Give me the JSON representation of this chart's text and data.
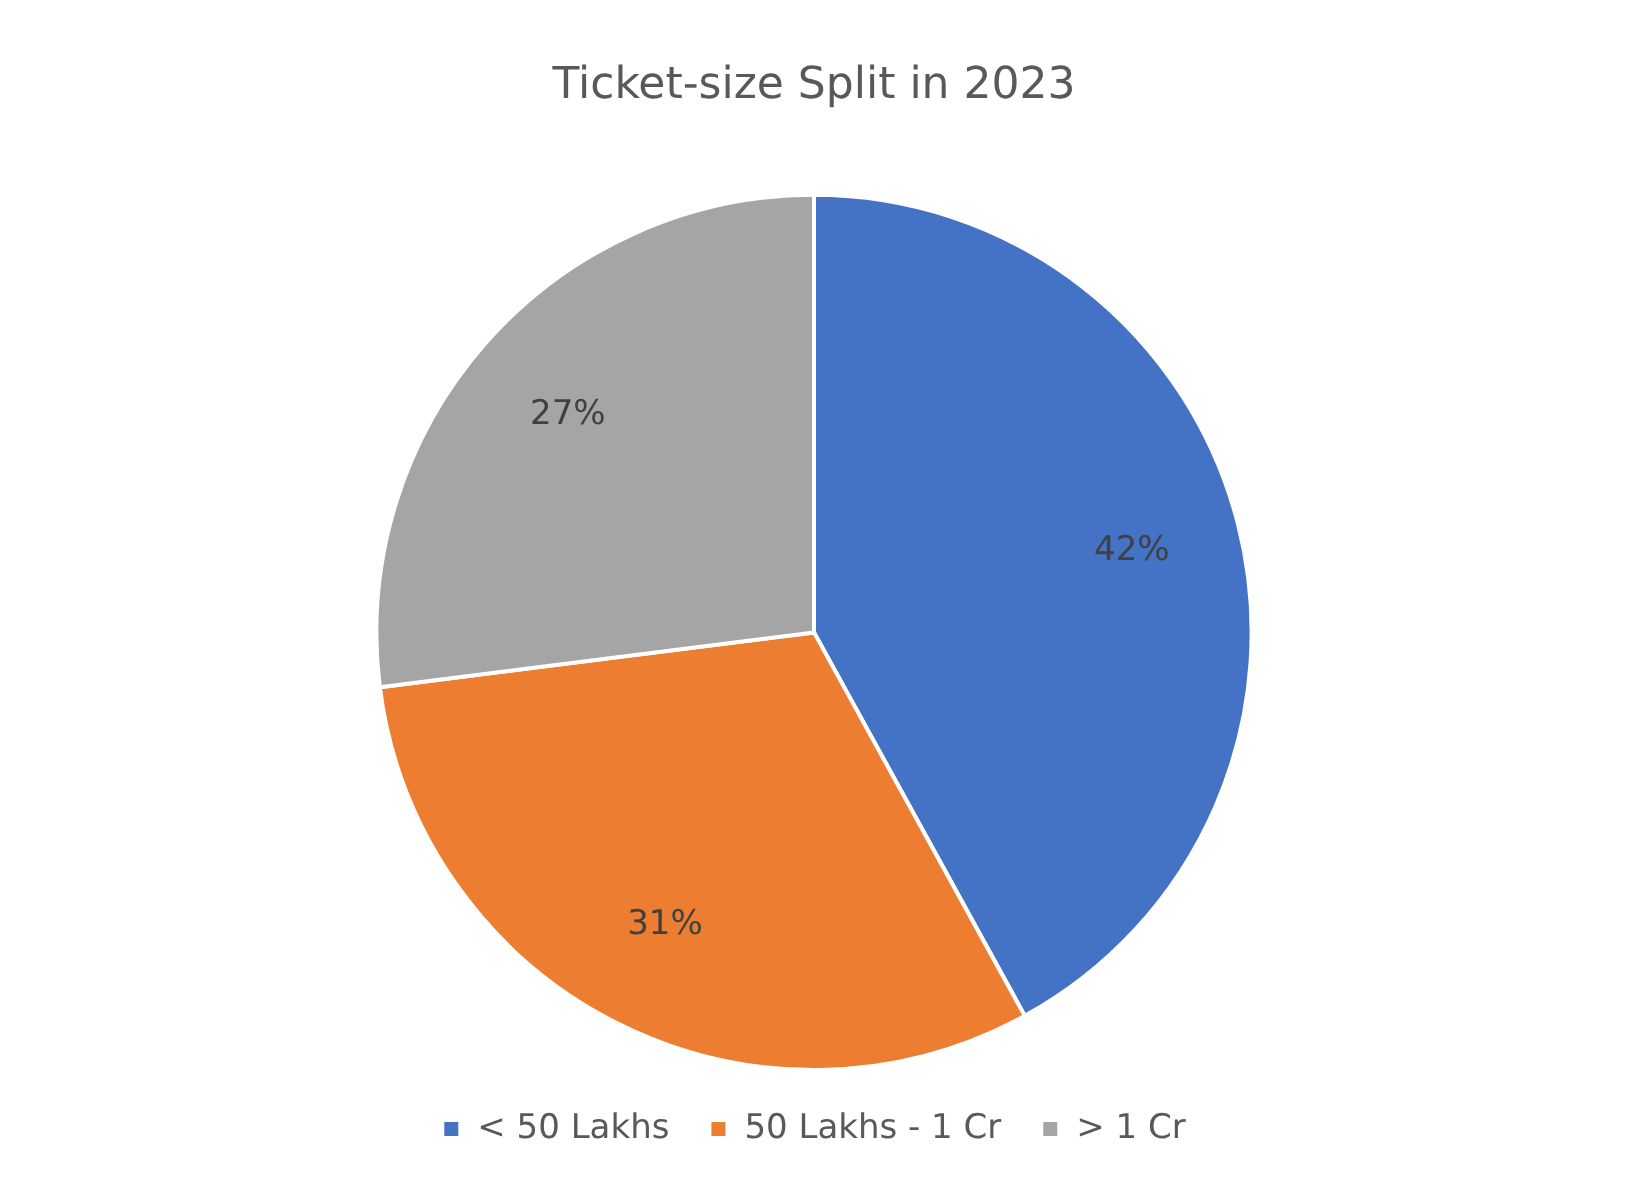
{
  "chart_data": {
    "type": "pie",
    "title": "Ticket-size Split in 2023",
    "categories": [
      "< 50 Lakhs",
      "50 Lakhs - 1 Cr",
      "> 1 Cr"
    ],
    "values": [
      42,
      31,
      27
    ],
    "colors": [
      "#4472c4",
      "#ed7d31",
      "#a5a5a5"
    ],
    "value_labels": [
      "42%",
      "31%",
      "27%"
    ],
    "legend": "bottom"
  }
}
